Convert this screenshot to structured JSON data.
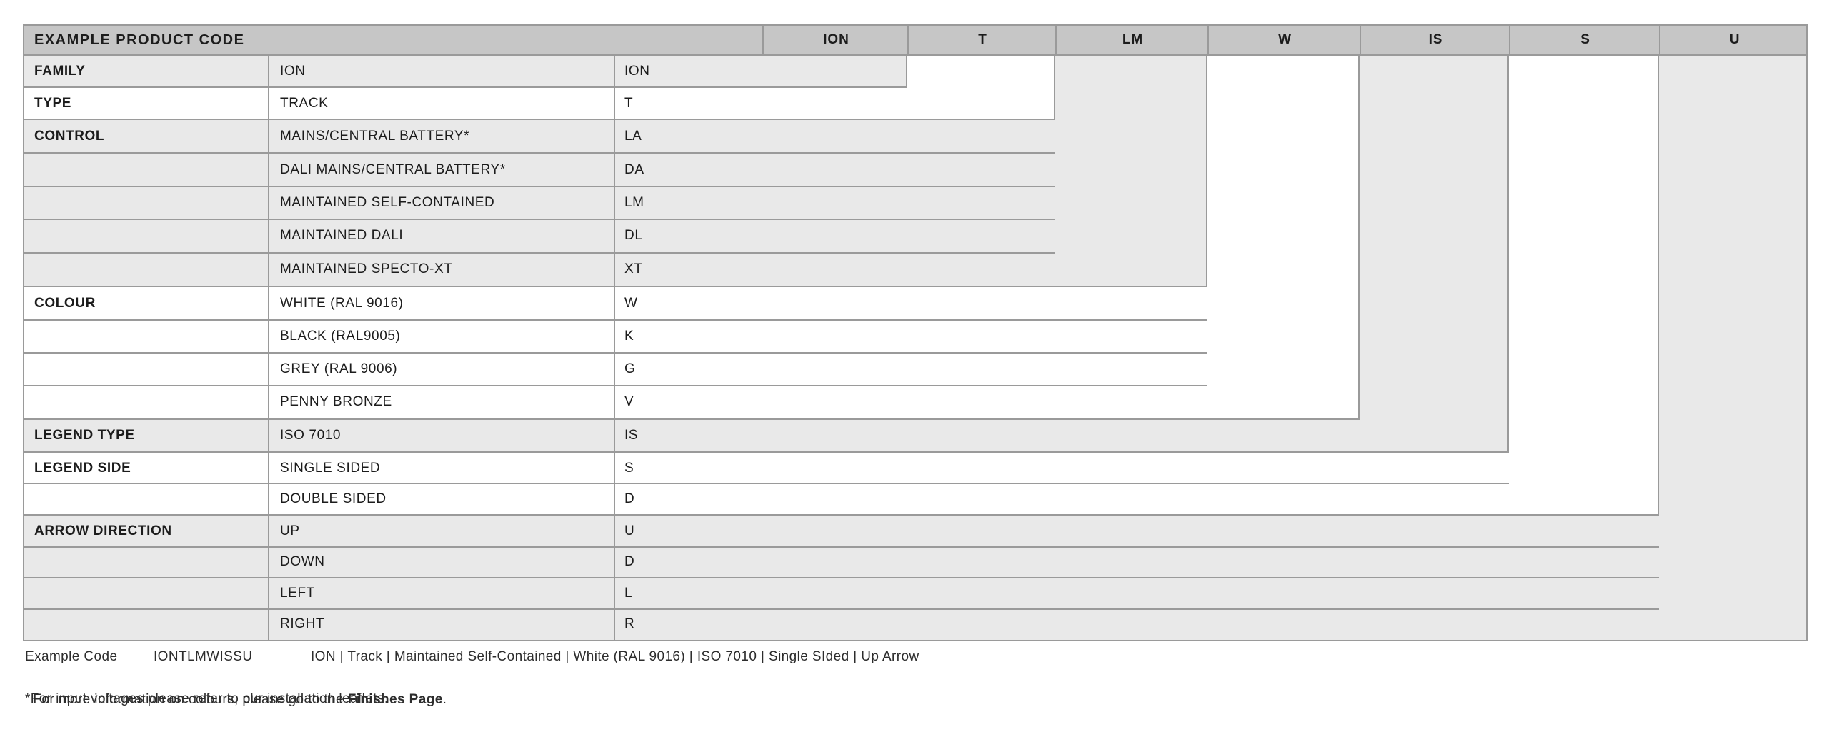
{
  "table": {
    "title": "EXAMPLE PRODUCT CODE",
    "columns": [
      {
        "code": "ION"
      },
      {
        "code": "T"
      },
      {
        "code": "LM"
      },
      {
        "code": "W"
      },
      {
        "code": "IS"
      },
      {
        "code": "S"
      },
      {
        "code": "U"
      }
    ],
    "sections": [
      {
        "label": "FAMILY",
        "shade": "gray",
        "rows": [
          {
            "desc": "ION",
            "code": "ION"
          }
        ]
      },
      {
        "label": "TYPE",
        "shade": "white",
        "rows": [
          {
            "desc": "TRACK",
            "code": "T"
          }
        ]
      },
      {
        "label": "CONTROL",
        "shade": "gray",
        "rows": [
          {
            "desc": "MAINS/CENTRAL BATTERY*",
            "code": "LA"
          },
          {
            "desc": "DALI MAINS/CENTRAL BATTERY*",
            "code": "DA"
          },
          {
            "desc": "MAINTAINED SELF-CONTAINED",
            "code": "LM"
          },
          {
            "desc": "MAINTAINED DALI",
            "code": "DL"
          },
          {
            "desc": "MAINTAINED SPECTO-XT",
            "code": "XT"
          }
        ]
      },
      {
        "label": "COLOUR",
        "shade": "white",
        "rows": [
          {
            "desc": "WHITE (RAL 9016)",
            "code": "W"
          },
          {
            "desc": "BLACK (RAL9005)",
            "code": "K"
          },
          {
            "desc": "GREY (RAL 9006)",
            "code": "G"
          },
          {
            "desc": "PENNY BRONZE",
            "code": "V"
          }
        ]
      },
      {
        "label": "LEGEND TYPE",
        "shade": "gray",
        "rows": [
          {
            "desc": "ISO 7010",
            "code": "IS"
          }
        ]
      },
      {
        "label": "LEGEND SIDE",
        "shade": "white",
        "rows": [
          {
            "desc": "SINGLE SIDED",
            "code": "S"
          },
          {
            "desc": "DOUBLE SIDED",
            "code": "D"
          }
        ]
      },
      {
        "label": "ARROW DIRECTION",
        "shade": "gray",
        "rows": [
          {
            "desc": "UP",
            "code": "U"
          },
          {
            "desc": "DOWN",
            "code": "D"
          },
          {
            "desc": "LEFT",
            "code": "L"
          },
          {
            "desc": "RIGHT",
            "code": "R"
          }
        ]
      }
    ]
  },
  "footer": {
    "example_label": "Example Code",
    "example_code": "IONTLMWISSU",
    "example_breakdown": "ION | Track | Maintained Self-Contained | White (RAL 9016) | ISO 7010 | Single SIded | Up Arrow",
    "finishes_prefix": "For more information on colours, please go to the ",
    "finishes_link": "Finishes Page",
    "finishes_suffix": ".",
    "voltage_note": "*For input voltages please refer to our installation leaflets."
  },
  "colors": {
    "header_bg": "#c6c6c6",
    "row_gray": "#e9e9e9",
    "row_white": "#ffffff",
    "border": "#9a9a9a",
    "text": "#1c1c1c"
  }
}
